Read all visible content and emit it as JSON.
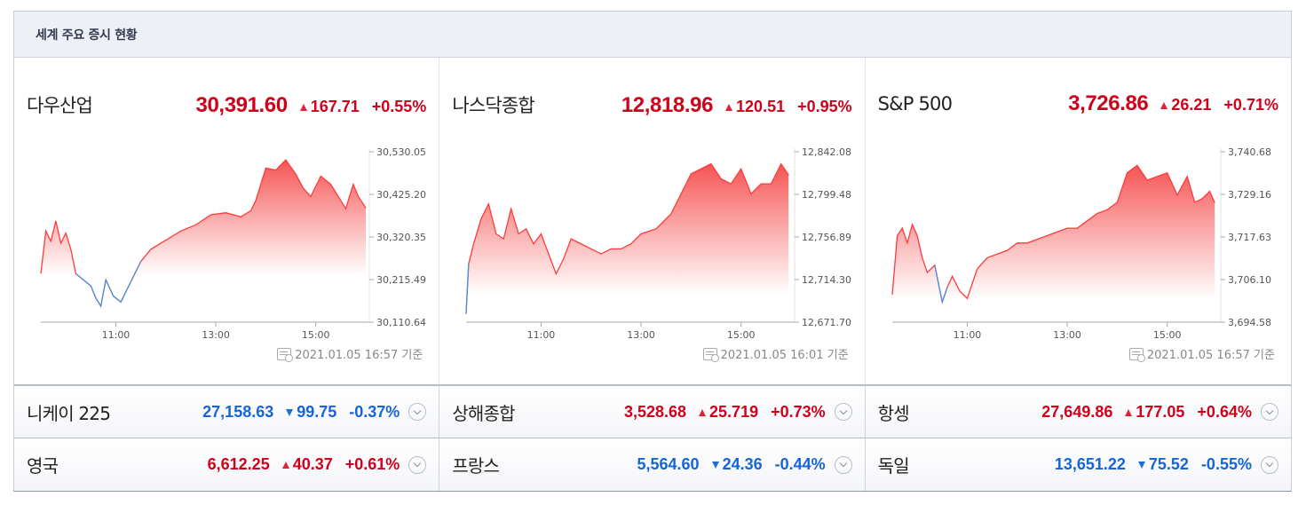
{
  "header": {
    "title": "세계 주요 증시 현황"
  },
  "panels": [
    {
      "name": "다우산업",
      "price": "30,391.60",
      "change": "167.71",
      "percent": "+0.55%",
      "direction": "up",
      "timestamp": "2021.01.05 16:57 기준"
    },
    {
      "name": "나스닥종합",
      "price": "12,818.96",
      "change": "120.51",
      "percent": "+0.95%",
      "direction": "up",
      "timestamp": "2021.01.05 16:01 기준"
    },
    {
      "name": "S&P 500",
      "price": "3,726.86",
      "change": "26.21",
      "percent": "+0.71%",
      "direction": "up",
      "timestamp": "2021.01.05 16:57 기준"
    }
  ],
  "rows": [
    [
      {
        "name": "니케이 225",
        "price": "27,158.63",
        "change": "99.75",
        "percent": "-0.37%",
        "direction": "down"
      },
      {
        "name": "상해종합",
        "price": "3,528.68",
        "change": "25.719",
        "percent": "+0.73%",
        "direction": "up"
      },
      {
        "name": "항셍",
        "price": "27,649.86",
        "change": "177.05",
        "percent": "+0.64%",
        "direction": "up"
      }
    ],
    [
      {
        "name": "영국",
        "price": "6,612.25",
        "change": "40.37",
        "percent": "+0.61%",
        "direction": "up"
      },
      {
        "name": "프랑스",
        "price": "5,564.60",
        "change": "24.36",
        "percent": "-0.44%",
        "direction": "down"
      },
      {
        "name": "독일",
        "price": "13,651.22",
        "change": "75.52",
        "percent": "-0.55%",
        "direction": "down"
      }
    ]
  ],
  "colors": {
    "up": "#d0021b",
    "down": "#1565d8",
    "area_top": "#f54b4b",
    "baseline_blue": "#4a90e2"
  },
  "chart_data": [
    {
      "type": "area",
      "title": "다우산업",
      "y_ticks": [
        "30,530.05",
        "30,425.20",
        "30,320.35",
        "30,215.49",
        "30,110.64"
      ],
      "ylim": [
        30110.64,
        30530.05
      ],
      "x_ticks": [
        "11:00",
        "13:00",
        "15:00"
      ],
      "xlim_hours": [
        9.5,
        16.0
      ],
      "baseline": 30223.89,
      "series": [
        {
          "x": [
            9.5,
            9.6,
            9.7,
            9.8,
            9.9,
            10.0,
            10.1,
            10.2,
            10.35,
            10.5,
            10.6,
            10.7,
            10.8,
            10.95,
            11.1,
            11.3,
            11.5,
            11.7,
            11.9,
            12.1,
            12.3,
            12.6,
            12.9,
            13.2,
            13.5,
            13.7,
            13.8,
            14.0,
            14.2,
            14.4,
            14.6,
            14.75,
            14.9,
            15.1,
            15.3,
            15.5,
            15.6,
            15.75,
            15.85,
            16.0
          ],
          "y": [
            30230,
            30335,
            30310,
            30360,
            30305,
            30330,
            30290,
            30230,
            30215,
            30200,
            30170,
            30150,
            30215,
            30175,
            30160,
            30210,
            30260,
            30290,
            30305,
            30320,
            30335,
            30350,
            30375,
            30380,
            30370,
            30385,
            30410,
            30490,
            30485,
            30510,
            30475,
            30440,
            30420,
            30470,
            30450,
            30410,
            30390,
            30450,
            30420,
            30391.6
          ]
        }
      ]
    },
    {
      "type": "area",
      "title": "나스닥종합",
      "y_ticks": [
        "12,842.08",
        "12,799.48",
        "12,756.89",
        "12,714.30",
        "12,671.70"
      ],
      "ylim": [
        12671.7,
        12842.08
      ],
      "x_ticks": [
        "11:00",
        "13:00",
        "15:00"
      ],
      "xlim_hours": [
        9.5,
        16.0
      ],
      "baseline": 12698.45,
      "series": [
        {
          "x": [
            9.5,
            9.55,
            9.65,
            9.8,
            9.95,
            10.1,
            10.25,
            10.4,
            10.55,
            10.7,
            10.85,
            11.0,
            11.15,
            11.3,
            11.45,
            11.6,
            11.8,
            12.0,
            12.2,
            12.4,
            12.6,
            12.8,
            13.0,
            13.3,
            13.6,
            13.8,
            14.0,
            14.2,
            14.4,
            14.6,
            14.8,
            15.0,
            15.2,
            15.4,
            15.6,
            15.8,
            15.95
          ],
          "y": [
            12680,
            12730,
            12750,
            12775,
            12790,
            12760,
            12755,
            12785,
            12760,
            12765,
            12750,
            12760,
            12740,
            12720,
            12735,
            12755,
            12750,
            12745,
            12740,
            12745,
            12745,
            12750,
            12760,
            12765,
            12780,
            12800,
            12820,
            12825,
            12830,
            12815,
            12810,
            12825,
            12800,
            12810,
            12810,
            12830,
            12818.96
          ]
        }
      ]
    },
    {
      "type": "area",
      "title": "S&P 500",
      "y_ticks": [
        "3,740.68",
        "3,729.16",
        "3,717.63",
        "3,706.10",
        "3,694.58"
      ],
      "ylim": [
        3694.58,
        3740.68
      ],
      "x_ticks": [
        "11:00",
        "13:00",
        "15:00"
      ],
      "xlim_hours": [
        9.5,
        16.0
      ],
      "baseline": 3700.65,
      "series": [
        {
          "x": [
            9.5,
            9.6,
            9.7,
            9.8,
            9.9,
            10.0,
            10.1,
            10.2,
            10.35,
            10.5,
            10.6,
            10.7,
            10.85,
            11.0,
            11.2,
            11.4,
            11.6,
            11.8,
            12.0,
            12.2,
            12.4,
            12.6,
            12.8,
            13.0,
            13.2,
            13.4,
            13.6,
            13.8,
            14.0,
            14.2,
            14.4,
            14.6,
            14.8,
            15.0,
            15.2,
            15.4,
            15.55,
            15.7,
            15.85,
            15.95
          ],
          "y": [
            3702,
            3718,
            3720,
            3716,
            3721,
            3718,
            3712,
            3708,
            3710,
            3700,
            3704,
            3707,
            3703,
            3701,
            3709,
            3712,
            3713,
            3714,
            3716,
            3716,
            3717,
            3718,
            3719,
            3720,
            3720,
            3722,
            3724,
            3725,
            3727,
            3735,
            3737,
            3733,
            3734,
            3735,
            3729,
            3734,
            3727,
            3728,
            3730,
            3726.86
          ]
        }
      ]
    }
  ]
}
